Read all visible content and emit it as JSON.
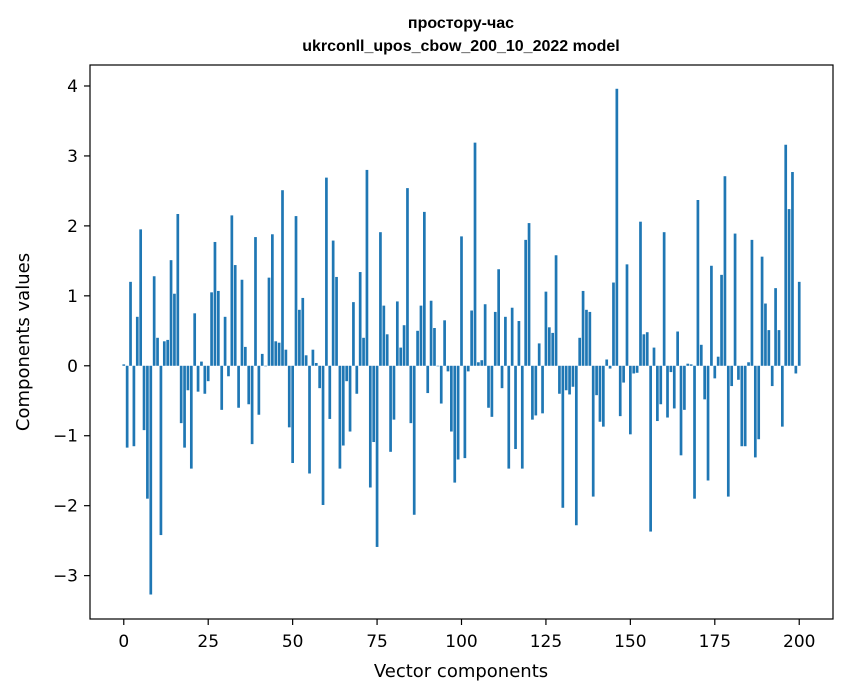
{
  "chart_data": {
    "type": "bar",
    "title": "простору-час",
    "subtitle": "ukrconll_upos_cbow_200_10_2022 model",
    "xlabel": "Vector components",
    "ylabel": "Components values",
    "xlim": [
      -10,
      210
    ],
    "ylim": [
      -3.62,
      4.3
    ],
    "x_ticks": [
      0,
      25,
      50,
      75,
      100,
      125,
      150,
      175,
      200
    ],
    "x_tick_labels": [
      "0",
      "25",
      "50",
      "75",
      "100",
      "125",
      "150",
      "175",
      "200"
    ],
    "y_ticks": [
      -3,
      -2,
      -1,
      0,
      1,
      2,
      3,
      4
    ],
    "y_tick_labels": [
      "−3",
      "−2",
      "−1",
      "0",
      "1",
      "2",
      "3",
      "4"
    ],
    "grid": false,
    "bar_color": "#1f77b4",
    "values": [
      0.02,
      -1.17,
      1.2,
      -1.15,
      0.7,
      1.95,
      -0.92,
      -1.9,
      -3.27,
      1.28,
      0.4,
      -2.42,
      0.35,
      0.37,
      1.51,
      1.03,
      2.17,
      -0.82,
      -1.17,
      -0.35,
      -1.47,
      0.75,
      -0.37,
      0.06,
      -0.4,
      -0.22,
      1.05,
      1.77,
      1.07,
      -0.63,
      0.7,
      -0.15,
      2.15,
      1.44,
      -0.6,
      1.23,
      0.27,
      -0.55,
      -1.12,
      1.84,
      -0.7,
      0.17,
      0.0,
      1.26,
      1.88,
      0.35,
      0.33,
      2.51,
      0.23,
      -0.88,
      -1.39,
      2.14,
      0.8,
      0.97,
      0.15,
      -1.54,
      0.23,
      0.04,
      -0.32,
      -1.99,
      2.69,
      -0.76,
      1.79,
      1.27,
      -1.47,
      -1.14,
      -0.22,
      -0.94,
      0.91,
      -0.4,
      1.34,
      0.4,
      2.8,
      -1.74,
      -1.09,
      -2.59,
      1.91,
      0.86,
      0.45,
      -1.23,
      -0.77,
      0.92,
      0.26,
      0.58,
      2.54,
      -0.82,
      -2.13,
      0.5,
      0.86,
      2.2,
      -0.39,
      0.93,
      0.54,
      0.0,
      -0.54,
      0.65,
      -0.08,
      -0.94,
      -1.67,
      -1.34,
      1.85,
      -1.32,
      -0.08,
      0.79,
      3.19,
      0.05,
      0.08,
      0.88,
      -0.6,
      -0.73,
      0.77,
      1.38,
      -0.32,
      0.7,
      -1.47,
      0.83,
      -1.19,
      0.64,
      -1.47,
      1.8,
      2.04,
      -0.77,
      -0.71,
      0.32,
      -0.68,
      1.06,
      0.55,
      0.47,
      1.58,
      -0.4,
      -2.03,
      -0.35,
      -0.41,
      -0.3,
      -2.28,
      0.4,
      1.07,
      0.8,
      0.77,
      -1.87,
      -0.42,
      -0.8,
      -0.87,
      0.09,
      -0.04,
      1.19,
      3.96,
      -0.72,
      -0.24,
      1.45,
      -0.98,
      -0.11,
      -0.1,
      2.06,
      0.45,
      0.48,
      -2.37,
      0.26,
      -0.79,
      -0.55,
      1.91,
      -0.74,
      -0.09,
      -0.61,
      0.49,
      -1.28,
      -0.63,
      0.03,
      0.02,
      -1.9,
      2.37,
      0.3,
      -0.48,
      -1.64,
      1.43,
      -0.18,
      0.13,
      1.3,
      2.71,
      -1.87,
      -0.29,
      1.89,
      -0.2,
      -1.15,
      -1.15,
      0.05,
      1.8,
      -1.31,
      -1.05,
      1.56,
      0.89,
      0.51,
      -0.29,
      1.11,
      0.51,
      -0.87,
      3.16,
      2.24,
      2.77,
      -0.11,
      1.2
    ]
  }
}
